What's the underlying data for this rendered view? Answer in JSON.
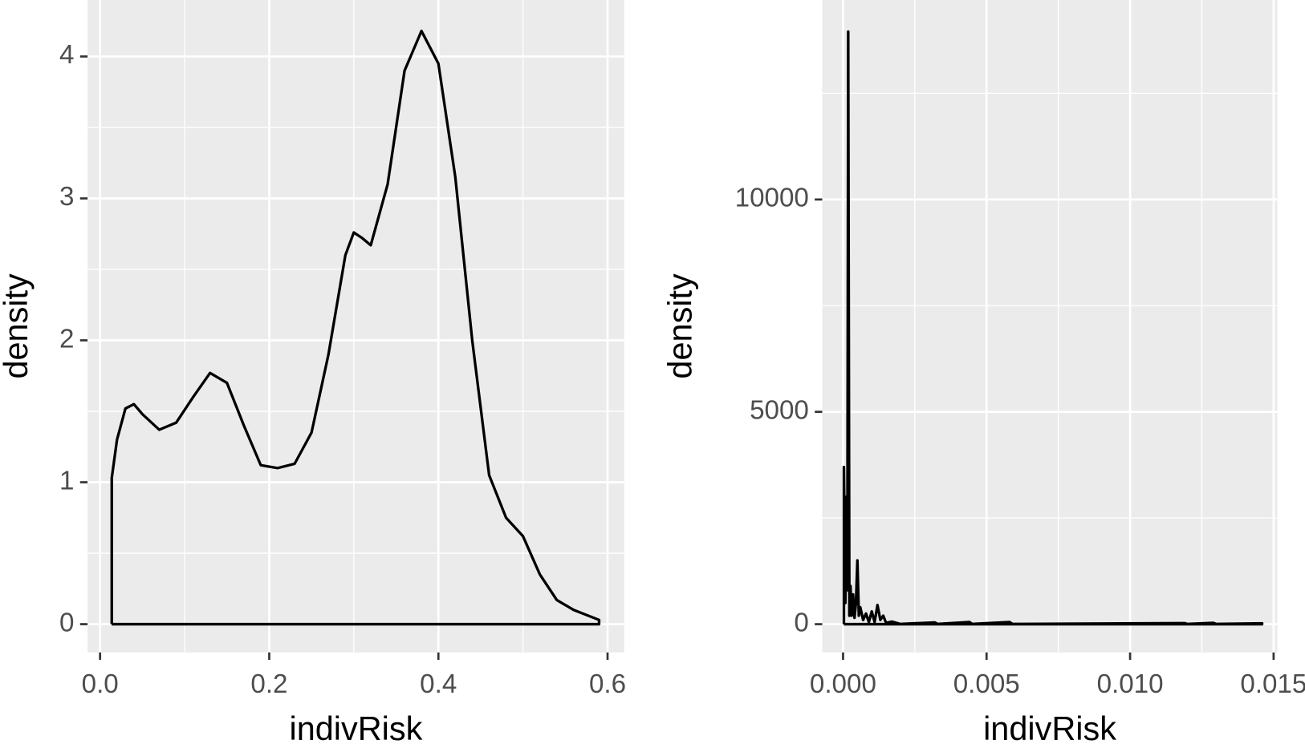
{
  "chart_data": [
    {
      "type": "line",
      "xlabel": "indivRisk",
      "ylabel": "density",
      "color": "#000000",
      "xlim": [
        -0.0148,
        0.6197
      ],
      "ylim": [
        -0.199,
        4.398
      ],
      "xticks": [
        {
          "value": 0,
          "label": "0.0"
        },
        0.2,
        0.4,
        0.6
      ],
      "yticks": [
        0,
        1,
        2,
        3,
        4
      ],
      "xminor": [
        0.1,
        0.3,
        0.5
      ],
      "yminor": [
        0.5,
        1.5,
        2.5,
        3.5
      ],
      "grid": true,
      "x": [
        0.0138,
        0.0138,
        0.02,
        0.03,
        0.04,
        0.05,
        0.07,
        0.09,
        0.11,
        0.13,
        0.15,
        0.17,
        0.19,
        0.21,
        0.23,
        0.25,
        0.27,
        0.29,
        0.3,
        0.31,
        0.32,
        0.34,
        0.36,
        0.38,
        0.4,
        0.42,
        0.44,
        0.46,
        0.48,
        0.5,
        0.52,
        0.54,
        0.56,
        0.59,
        0.59,
        0.0138
      ],
      "values": [
        0,
        1.03,
        1.3,
        1.52,
        1.55,
        1.48,
        1.37,
        1.42,
        1.6,
        1.77,
        1.7,
        1.4,
        1.12,
        1.1,
        1.13,
        1.35,
        1.9,
        2.6,
        2.76,
        2.72,
        2.67,
        3.1,
        3.9,
        4.18,
        3.95,
        3.15,
        2.0,
        1.05,
        0.75,
        0.62,
        0.35,
        0.17,
        0.1,
        0.03,
        0,
        0
      ]
    },
    {
      "type": "line",
      "xlabel": "indivRisk",
      "ylabel": "density",
      "color": "#000000",
      "xlim": [
        -0.000725,
        0.01513
      ],
      "ylim": [
        -665,
        14697
      ],
      "xticks": [
        {
          "value": 0,
          "label": "0.000"
        },
        {
          "value": 0.005,
          "label": "0.005"
        },
        {
          "value": 0.01,
          "label": "0.010"
        },
        {
          "value": 0.015,
          "label": "0.015"
        }
      ],
      "yticks": [
        0,
        5000,
        10000
      ],
      "xminor": [
        0.0025,
        0.0075,
        0.0125
      ],
      "yminor": [
        2500,
        7500,
        12500
      ],
      "grid": true,
      "x": [
        3e-05,
        3e-05,
        8e-05,
        0.00012,
        0.00015,
        0.00018,
        0.00022,
        0.00026,
        0.0003,
        0.00035,
        0.0004,
        0.00045,
        0.0005,
        0.00055,
        0.0006,
        0.0007,
        0.0008,
        0.0009,
        0.001,
        0.0011,
        0.0012,
        0.0013,
        0.0014,
        0.0015,
        0.0017,
        0.002,
        0.0032,
        0.0033,
        0.0044,
        0.0045,
        0.0058,
        0.0059,
        0.0119,
        0.012,
        0.0129,
        0.013,
        0.0146,
        0.0146,
        3e-05
      ],
      "values": [
        0,
        3700,
        500,
        3000,
        800,
        13950,
        200,
        900,
        200,
        700,
        150,
        500,
        1500,
        200,
        400,
        100,
        250,
        50,
        300,
        50,
        450,
        100,
        200,
        30,
        60,
        5,
        40,
        5,
        50,
        5,
        50,
        5,
        25,
        5,
        30,
        5,
        20,
        0,
        0
      ]
    }
  ]
}
